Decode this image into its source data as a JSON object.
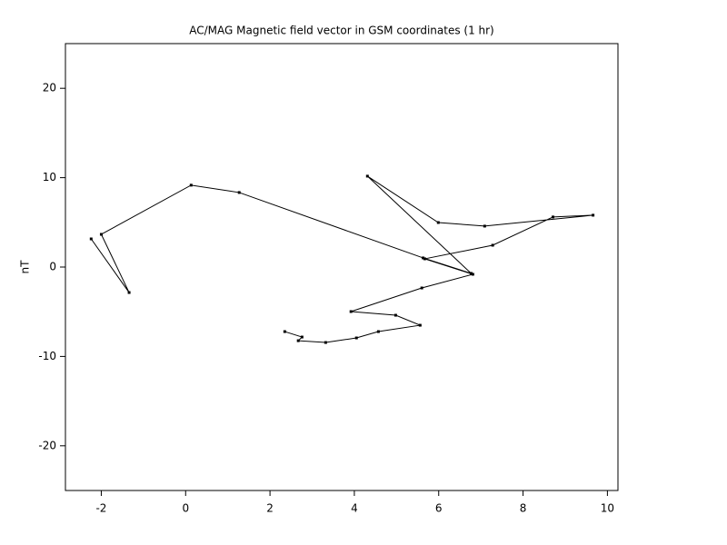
{
  "chart_data": {
    "type": "line",
    "title": "AC/MAG  Magnetic field vector in GSM coordinates (1 hr)",
    "ylabel": "nT",
    "color": "#000000",
    "x": [
      2.35,
      2.76,
      2.67,
      3.32,
      4.05,
      4.57,
      5.56,
      4.98,
      3.92,
      5.6,
      6.81,
      5.67,
      7.28,
      8.71,
      9.66,
      7.09,
      5.99,
      4.31,
      6.77,
      5.63,
      1.27,
      0.13,
      -2.0,
      -1.34,
      -2.24
    ],
    "values": [
      -7.22,
      -7.83,
      -8.24,
      -8.44,
      -7.93,
      -7.22,
      -6.51,
      -5.39,
      -4.98,
      -2.34,
      -0.81,
      0.92,
      2.44,
      5.6,
      5.8,
      4.58,
      4.98,
      10.17,
      -0.71,
      1.02,
      8.34,
      9.16,
      3.66,
      -2.85,
      3.15
    ],
    "xlim": [
      -2.85,
      10.25
    ],
    "ylim": [
      -25,
      25
    ],
    "xticks": [
      -2,
      0,
      2,
      4,
      6,
      8,
      10
    ],
    "yticks": [
      -20,
      -10,
      0,
      10,
      20
    ],
    "grid": false
  }
}
